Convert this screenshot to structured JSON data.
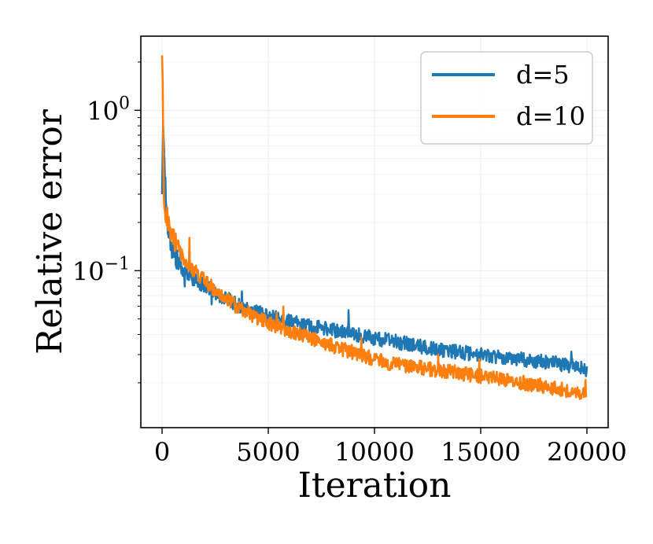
{
  "chart_data": {
    "type": "line",
    "title": "",
    "xlabel": "Iteration",
    "ylabel": "Relative error",
    "xscale": "linear",
    "yscale": "log",
    "xlim": [
      -1000,
      21000
    ],
    "ylim": [
      0.0105,
      2.9
    ],
    "grid": true,
    "legend_position": "top-right",
    "x_ticks": [
      {
        "value": 0,
        "label": "0"
      },
      {
        "value": 5000,
        "label": "5000"
      },
      {
        "value": 10000,
        "label": "10000"
      },
      {
        "value": 15000,
        "label": "15000"
      },
      {
        "value": 20000,
        "label": "20000"
      }
    ],
    "y_ticks": [
      {
        "value": 1,
        "base": "10",
        "exp": "0"
      },
      {
        "value": 0.1,
        "base": "10",
        "exp": "−1"
      }
    ],
    "series": [
      {
        "name": "d=5",
        "color": "#1f77b4",
        "x": [
          0,
          50,
          100,
          150,
          200,
          300,
          400,
          500,
          700,
          1000,
          1500,
          2000,
          2500,
          3000,
          3500,
          4000,
          5000,
          6000,
          7000,
          8000,
          9000,
          10000,
          11000,
          12000,
          13000,
          14000,
          15000,
          16000,
          17000,
          18000,
          19000,
          20000
        ],
        "values": [
          0.3,
          0.8,
          0.55,
          0.35,
          0.25,
          0.18,
          0.15,
          0.13,
          0.115,
          0.1,
          0.088,
          0.08,
          0.073,
          0.067,
          0.062,
          0.058,
          0.052,
          0.048,
          0.045,
          0.043,
          0.04,
          0.038,
          0.036,
          0.034,
          0.032,
          0.031,
          0.03,
          0.029,
          0.028,
          0.027,
          0.026,
          0.024
        ]
      },
      {
        "name": "d=10",
        "color": "#ff7f0e",
        "x": [
          0,
          30,
          80,
          150,
          200,
          300,
          400,
          500,
          700,
          1000,
          1500,
          2000,
          2500,
          3000,
          3500,
          4000,
          5000,
          6000,
          7000,
          8000,
          9000,
          10000,
          11000,
          12000,
          13000,
          14000,
          15000,
          16000,
          17000,
          18000,
          19000,
          20000
        ],
        "values": [
          2.2,
          1.5,
          0.3,
          0.24,
          0.22,
          0.2,
          0.18,
          0.16,
          0.14,
          0.12,
          0.1,
          0.087,
          0.076,
          0.067,
          0.06,
          0.055,
          0.047,
          0.042,
          0.038,
          0.034,
          0.031,
          0.028,
          0.026,
          0.025,
          0.024,
          0.023,
          0.022,
          0.021,
          0.02,
          0.019,
          0.018,
          0.017
        ]
      }
    ]
  }
}
